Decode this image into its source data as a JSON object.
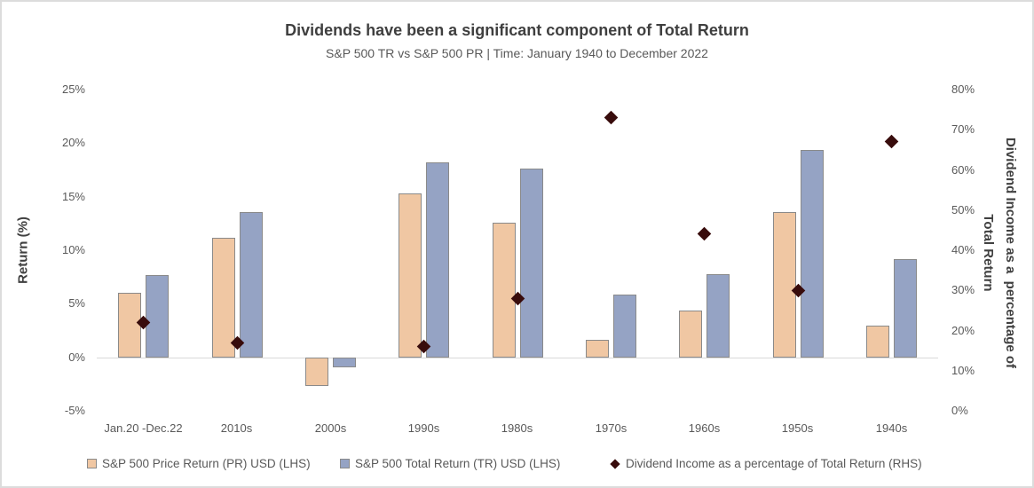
{
  "header": {
    "title": "Dividends have been a significant component of Total Return",
    "subtitle": "S&P 500 TR vs S&P 500 PR | Time: January 1940 to December 2022"
  },
  "chart_data": {
    "type": "combo",
    "categories": [
      "Jan.20 -Dec.22",
      "2010s",
      "2000s",
      "1990s",
      "1980s",
      "1970s",
      "1960s",
      "1950s",
      "1940s"
    ],
    "series": [
      {
        "name": "S&P 500 Price Return (PR) USD (LHS)",
        "chart_type": "bar",
        "axis": "left",
        "fill": "#F0C7A3",
        "border": "#8A8A8A",
        "values": [
          6.0,
          11.2,
          -2.7,
          15.3,
          12.6,
          1.6,
          4.4,
          13.6,
          3.0
        ]
      },
      {
        "name": "S&P 500 Total Return (TR) USD (LHS)",
        "chart_type": "bar",
        "axis": "left",
        "fill": "#95A3C4",
        "border": "#8A8A8A",
        "values": [
          7.7,
          13.6,
          -0.9,
          18.2,
          17.6,
          5.9,
          7.8,
          19.4,
          9.2
        ]
      },
      {
        "name": "Dividend Income as a percentage of Total Return (RHS)",
        "chart_type": "scatter",
        "marker": "diamond",
        "axis": "right",
        "fill": "#380C0C",
        "values": [
          22,
          17,
          null,
          16,
          28,
          73,
          44,
          30,
          67
        ]
      }
    ],
    "left_axis": {
      "title": "Return (%)",
      "min": -5,
      "max": 25,
      "ticks": [
        "25%",
        "20%",
        "15%",
        "10%",
        "5%",
        "0%",
        "-5%"
      ]
    },
    "right_axis": {
      "title_line1": "Dividend Income as a  percentage of",
      "title_line2": "Total Return",
      "min": 0,
      "max": 80,
      "ticks": [
        "80%",
        "70%",
        "60%",
        "50%",
        "40%",
        "30%",
        "20%",
        "10%",
        "0%"
      ]
    },
    "grid": "zero-line-only",
    "legend_position": "bottom"
  },
  "colors": {
    "title_text": "#3F3F3F",
    "body_text": "#595959",
    "gridline": "#D9D9D9",
    "frame_border": "#DCDCDC"
  }
}
